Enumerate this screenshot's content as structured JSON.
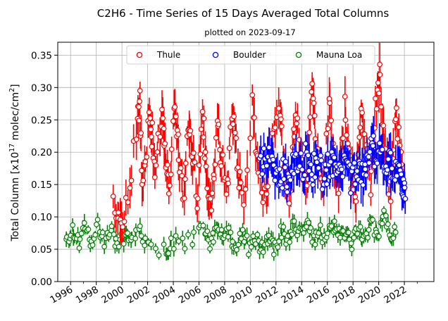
{
  "chart_data": {
    "type": "scatter",
    "title": "C2H6 - Time Series of 15 Days Averaged Total Columns",
    "subtitle": "plotted on 2023-09-17",
    "ylabel_main": "Total Column [x10",
    "ylabel_exp": "17",
    "ylabel_tail": " molec/cm",
    "ylabel_sq": "2",
    "ylabel_close": "]",
    "xlim": [
      1995.0,
      2024.3
    ],
    "ylim": [
      0.0,
      0.37
    ],
    "x_ticks": [
      1996,
      1998,
      2000,
      2002,
      2004,
      2006,
      2008,
      2010,
      2012,
      2014,
      2016,
      2018,
      2020,
      2022
    ],
    "x_tick_labels": [
      "1996",
      "1998",
      "2000",
      "2002",
      "2004",
      "2006",
      "2008",
      "2010",
      "2012",
      "2014",
      "2016",
      "2018",
      "2020",
      "2022"
    ],
    "y_ticks": [
      0.0,
      0.05,
      0.1,
      0.15,
      0.2,
      0.25,
      0.3,
      0.35
    ],
    "y_tick_labels": [
      "0.00",
      "0.05",
      "0.10",
      "0.15",
      "0.20",
      "0.25",
      "0.30",
      "0.35"
    ],
    "grid": true,
    "legend_position": "top-center",
    "series": [
      {
        "name": "Thule",
        "color": "#ff0000",
        "profile": [
          [
            1999.3,
            0.14
          ],
          [
            1999.8,
            0.1
          ],
          [
            2000.4,
            0.11
          ],
          [
            2001.2,
            0.25
          ],
          [
            2001.4,
            0.28
          ],
          [
            2001.6,
            0.12
          ],
          [
            2002.1,
            0.25
          ],
          [
            2002.3,
            0.24
          ],
          [
            2002.6,
            0.17
          ],
          [
            2003.1,
            0.26
          ],
          [
            2003.4,
            0.19
          ],
          [
            2003.7,
            0.14
          ],
          [
            2004.1,
            0.26
          ],
          [
            2004.4,
            0.21
          ],
          [
            2004.8,
            0.12
          ],
          [
            2005.2,
            0.25
          ],
          [
            2005.5,
            0.2
          ],
          [
            2005.9,
            0.13
          ],
          [
            2006.3,
            0.26
          ],
          [
            2006.6,
            0.17
          ],
          [
            2007.0,
            0.12
          ],
          [
            2007.4,
            0.25
          ],
          [
            2007.7,
            0.2
          ],
          [
            2008.2,
            0.13
          ],
          [
            2008.6,
            0.27
          ],
          [
            2009.0,
            0.18
          ],
          [
            2009.4,
            0.12
          ],
          [
            2010.2,
            0.28
          ],
          [
            2010.6,
            0.16
          ],
          [
            2011.2,
            0.13
          ],
          [
            2011.5,
            0.2
          ],
          [
            2012.2,
            0.28
          ],
          [
            2012.6,
            0.18
          ],
          [
            2013.1,
            0.13
          ],
          [
            2013.5,
            0.27
          ],
          [
            2013.9,
            0.19
          ],
          [
            2014.4,
            0.14
          ],
          [
            2014.8,
            0.29
          ],
          [
            2015.1,
            0.21
          ],
          [
            2015.6,
            0.14
          ],
          [
            2016.1,
            0.27
          ],
          [
            2016.5,
            0.2
          ],
          [
            2016.9,
            0.14
          ],
          [
            2017.4,
            0.27
          ],
          [
            2017.8,
            0.17
          ],
          [
            2018.2,
            0.13
          ],
          [
            2018.6,
            0.28
          ],
          [
            2019.0,
            0.2
          ],
          [
            2019.4,
            0.15
          ],
          [
            2019.8,
            0.28
          ],
          [
            2020.1,
            0.32
          ],
          [
            2020.5,
            0.2
          ],
          [
            2020.9,
            0.13
          ],
          [
            2021.3,
            0.26
          ],
          [
            2021.7,
            0.19
          ],
          [
            2022.0,
            0.14
          ]
        ]
      },
      {
        "name": "Boulder",
        "color": "#0000ff",
        "profile": [
          [
            2010.7,
            0.18
          ],
          [
            2011.3,
            0.19
          ],
          [
            2011.8,
            0.17
          ],
          [
            2012.3,
            0.17
          ],
          [
            2012.8,
            0.16
          ],
          [
            2013.3,
            0.18
          ],
          [
            2013.8,
            0.17
          ],
          [
            2014.3,
            0.19
          ],
          [
            2014.8,
            0.17
          ],
          [
            2015.3,
            0.18
          ],
          [
            2015.8,
            0.16
          ],
          [
            2016.3,
            0.19
          ],
          [
            2016.8,
            0.17
          ],
          [
            2017.3,
            0.18
          ],
          [
            2017.8,
            0.16
          ],
          [
            2018.3,
            0.18
          ],
          [
            2018.8,
            0.17
          ],
          [
            2019.3,
            0.21
          ],
          [
            2019.8,
            0.2
          ],
          [
            2020.3,
            0.19
          ],
          [
            2020.8,
            0.18
          ],
          [
            2021.3,
            0.18
          ],
          [
            2021.8,
            0.16
          ],
          [
            2022.1,
            0.15
          ]
        ]
      },
      {
        "name": "Mauna Loa",
        "color": "#008000",
        "profile": [
          [
            1995.6,
            0.06
          ],
          [
            1996.1,
            0.08
          ],
          [
            1996.6,
            0.06
          ],
          [
            1997.1,
            0.08
          ],
          [
            1997.6,
            0.06
          ],
          [
            1998.1,
            0.09
          ],
          [
            1998.6,
            0.06
          ],
          [
            1999.1,
            0.08
          ],
          [
            1999.6,
            0.06
          ],
          [
            2000.1,
            0.07
          ],
          [
            2000.6,
            0.07
          ],
          [
            2001.4,
            0.08
          ],
          [
            2001.9,
            0.05
          ],
          [
            2003.4,
            0.05
          ],
          [
            2003.9,
            0.06
          ],
          [
            2005.1,
            0.06
          ],
          [
            2006.3,
            0.08
          ],
          [
            2006.8,
            0.06
          ],
          [
            2007.3,
            0.08
          ],
          [
            2007.8,
            0.07
          ],
          [
            2008.3,
            0.08
          ],
          [
            2008.8,
            0.05
          ],
          [
            2009.4,
            0.08
          ],
          [
            2009.9,
            0.05
          ],
          [
            2010.4,
            0.07
          ],
          [
            2010.9,
            0.05
          ],
          [
            2011.4,
            0.07
          ],
          [
            2011.9,
            0.05
          ],
          [
            2012.4,
            0.08
          ],
          [
            2012.9,
            0.06
          ],
          [
            2013.4,
            0.09
          ],
          [
            2013.9,
            0.07
          ],
          [
            2014.4,
            0.09
          ],
          [
            2014.9,
            0.06
          ],
          [
            2015.4,
            0.08
          ],
          [
            2015.9,
            0.06
          ],
          [
            2016.4,
            0.09
          ],
          [
            2016.9,
            0.07
          ],
          [
            2017.4,
            0.08
          ],
          [
            2017.9,
            0.06
          ],
          [
            2018.4,
            0.08
          ],
          [
            2018.9,
            0.06
          ],
          [
            2019.4,
            0.09
          ],
          [
            2019.9,
            0.07
          ],
          [
            2020.4,
            0.11
          ],
          [
            2020.9,
            0.06
          ],
          [
            2021.4,
            0.09
          ]
        ]
      }
    ]
  }
}
